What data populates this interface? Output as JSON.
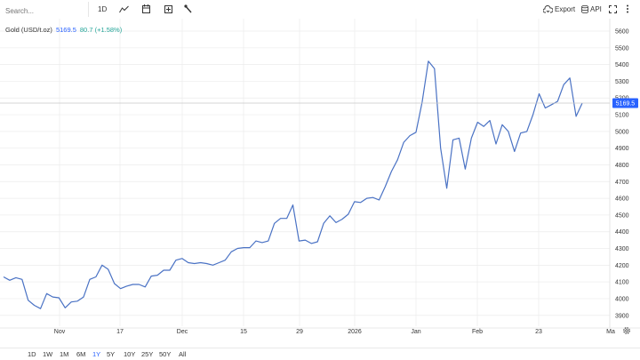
{
  "toolbar": {
    "search_placeholder": "Search...",
    "interval": "1D",
    "export_label": "Export",
    "api_label": "API"
  },
  "legend": {
    "symbol": "Gold (USD/t.oz)",
    "price": "5169.5",
    "change": "80.7 (+1.58%)"
  },
  "price_tag": "5169.5",
  "colors": {
    "line": "#4a72c4",
    "price_tag_bg": "#2962ff",
    "grid": "#ececec",
    "positive": "#26a69a"
  },
  "chart_data": {
    "type": "line",
    "title": "",
    "xlabel": "",
    "ylabel": "",
    "y_ticks": [
      "5600",
      "5500",
      "5400",
      "5300",
      "5200",
      "5100",
      "5000",
      "4900",
      "4800",
      "4700",
      "4600",
      "4500",
      "4400",
      "4300",
      "4200",
      "4100",
      "4000",
      "3900"
    ],
    "ylim": [
      3835,
      5685
    ],
    "x_ticks": [
      "Nov",
      "17",
      "Dec",
      "15",
      "29",
      "2026",
      "Jan",
      "Feb",
      "23",
      "Ma"
    ],
    "series": [
      {
        "values": [
          4130,
          4110,
          4125,
          4115,
          3990,
          3960,
          3940,
          4030,
          4010,
          4005,
          3945,
          3980,
          3985,
          4010,
          4115,
          4130,
          4200,
          4175,
          4090,
          4060,
          4075,
          4085,
          4085,
          4070,
          4135,
          4140,
          4170,
          4170,
          4230,
          4240,
          4215,
          4210,
          4215,
          4210,
          4200,
          4215,
          4230,
          4280,
          4300,
          4305,
          4305,
          4345,
          4335,
          4345,
          4450,
          4480,
          4480,
          4560,
          4345,
          4350,
          4330,
          4340,
          4450,
          4495,
          4455,
          4475,
          4505,
          4580,
          4575,
          4600,
          4605,
          4590,
          4670,
          4760,
          4830,
          4935,
          4975,
          4995,
          5175,
          5420,
          5375,
          4900,
          4660,
          4950,
          4960,
          4775,
          4960,
          5055,
          5030,
          5065,
          4925,
          5040,
          5000,
          4880,
          4990,
          5000,
          5100,
          5225,
          5140,
          5160,
          5180,
          5280,
          5320,
          5090,
          5169.5
        ]
      }
    ]
  },
  "range_buttons": [
    "1D",
    "1W",
    "1M",
    "6M",
    "1Y",
    "5Y",
    "10Y",
    "25Y",
    "50Y",
    "All"
  ],
  "active_range": "1Y"
}
